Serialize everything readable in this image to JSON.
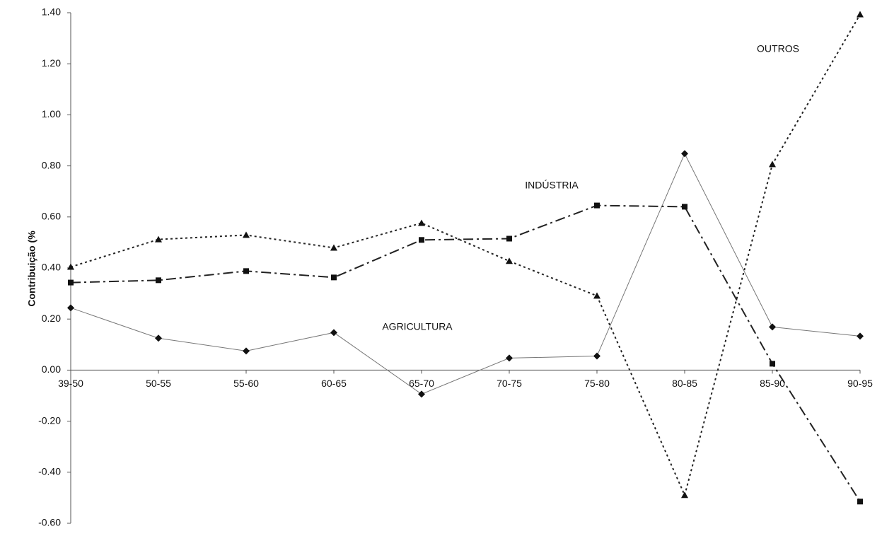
{
  "chart_data": {
    "type": "line",
    "y_label": "Contribuição (%",
    "categories": [
      "39-50",
      "50-55",
      "55-60",
      "60-65",
      "65-70",
      "70-75",
      "75-80",
      "80-85",
      "85-90",
      "90-95"
    ],
    "series": [
      {
        "name": "AGRICULTURA",
        "color": "#777777",
        "marker": "diamond",
        "dash": "solid",
        "values": [
          0.244,
          0.125,
          0.075,
          0.147,
          -0.094,
          0.047,
          0.055,
          0.848,
          0.169,
          0.133
        ]
      },
      {
        "name": "INDÚSTRIA",
        "color": "#222222",
        "marker": "square",
        "dash": "dashdot",
        "values": [
          0.343,
          0.352,
          0.388,
          0.363,
          0.51,
          0.515,
          0.645,
          0.64,
          0.025,
          -0.515
        ]
      },
      {
        "name": "OUTROS",
        "color": "#222222",
        "marker": "triangle",
        "dash": "dotted",
        "values": [
          0.404,
          0.512,
          0.529,
          0.479,
          0.576,
          0.427,
          0.291,
          -0.49,
          0.806,
          1.393
        ]
      }
    ],
    "ylim": [
      -0.6,
      1.4
    ],
    "yticks": [
      {
        "value": -0.6,
        "label": "-0.60"
      },
      {
        "value": -0.4,
        "label": "-0.40"
      },
      {
        "value": -0.2,
        "label": "-0.20"
      },
      {
        "value": 0,
        "label": "0.00"
      },
      {
        "value": 0.2,
        "label": "0.20"
      },
      {
        "value": 0.4,
        "label": "0.40"
      },
      {
        "value": 0.6,
        "label": "0.60"
      },
      {
        "value": 0.8,
        "label": "0.80"
      },
      {
        "value": 1,
        "label": "1.00"
      },
      {
        "value": 1.2,
        "label": "1.20"
      },
      {
        "value": 1.4,
        "label": "1.40"
      }
    ],
    "grid": false
  }
}
